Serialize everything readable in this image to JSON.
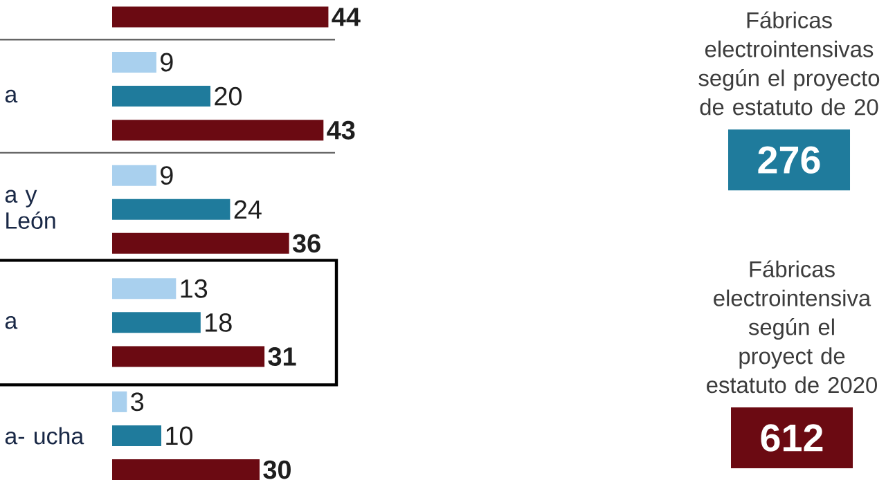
{
  "chart_data": {
    "type": "bar",
    "orientation": "horizontal",
    "data_labels": true,
    "categories": [
      null,
      "a",
      "a y León",
      "a",
      "a- ucha"
    ],
    "series": [
      {
        "color": "#a9d0ee",
        "values": [
          null,
          9,
          9,
          13,
          3
        ]
      },
      {
        "color": "#1f7b9c",
        "values": [
          null,
          20,
          24,
          18,
          10
        ]
      },
      {
        "color": "#6b0a12",
        "values": [
          44,
          43,
          36,
          31,
          30
        ]
      }
    ],
    "annotations": [
      "Fábricas electrointensivas según el proyecto de estatuto de 20",
      "276",
      "Fábricas electrointensiva según el proyect de estatuto de 2020",
      "612"
    ]
  }
}
